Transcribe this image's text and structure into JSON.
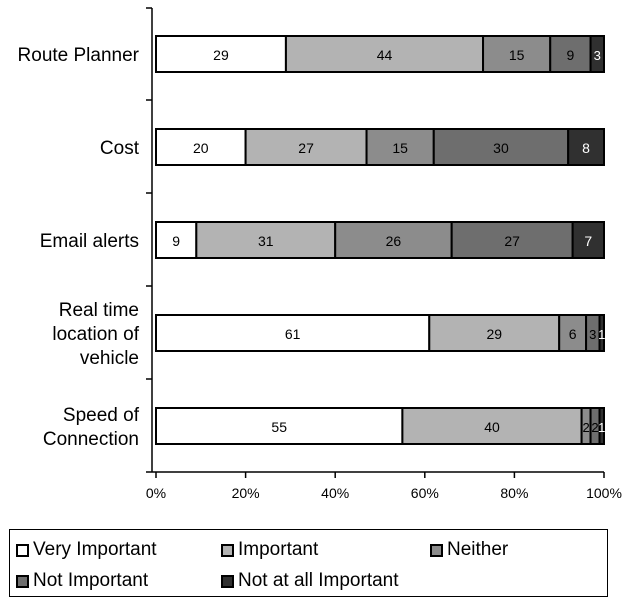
{
  "chart_data": {
    "type": "bar",
    "orientation": "horizontal",
    "stacked": true,
    "normalized": true,
    "categories": [
      [
        "Route Planner"
      ],
      [
        "Cost"
      ],
      [
        "Email alerts"
      ],
      [
        "Real time",
        "location of",
        "vehicle"
      ],
      [
        "Speed of",
        "Connection"
      ]
    ],
    "series": [
      {
        "name": "Very Important",
        "color": "#ffffff",
        "values": [
          29,
          20,
          9,
          61,
          55
        ]
      },
      {
        "name": "Important",
        "color": "#b3b3b3",
        "values": [
          44,
          27,
          31,
          29,
          40
        ]
      },
      {
        "name": "Neither",
        "color": "#8c8c8c",
        "values": [
          15,
          15,
          26,
          6,
          2
        ]
      },
      {
        "name": "Not Important",
        "color": "#6e6e6e",
        "values": [
          9,
          30,
          27,
          3,
          2
        ]
      },
      {
        "name": "Not at all Important",
        "color": "#303030",
        "values": [
          3,
          8,
          7,
          1,
          1
        ]
      }
    ],
    "xlim": [
      0,
      100
    ],
    "xticks": [
      "0%",
      "20%",
      "40%",
      "60%",
      "80%",
      "100%"
    ],
    "grid": false,
    "legend_position": "bottom"
  }
}
